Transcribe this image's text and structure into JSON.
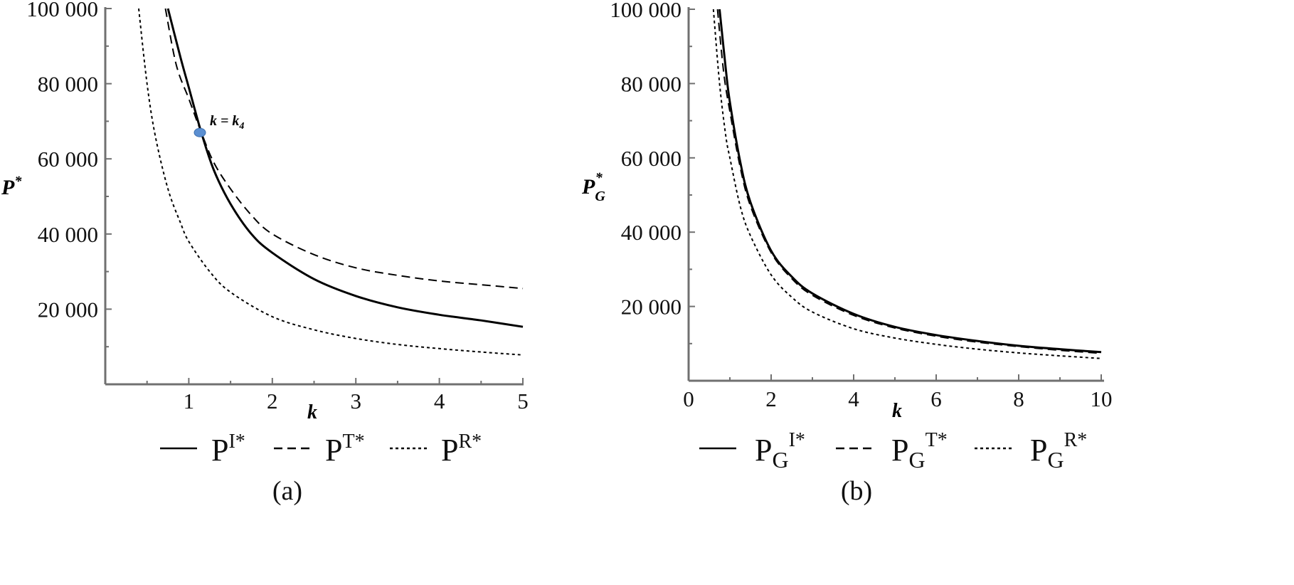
{
  "chart_data": [
    {
      "type": "line",
      "panel": "(a)",
      "xlabel": "k",
      "ylabel": "P",
      "ylabel_sup": "*",
      "xlim": [
        0,
        5
      ],
      "ylim": [
        0,
        100000
      ],
      "xticks": [
        "1",
        "2",
        "3",
        "4",
        "5"
      ],
      "yticks": [
        "20 000",
        "40 000",
        "60 000",
        "80 000",
        "100 000"
      ],
      "series": [
        {
          "name": "P",
          "sup": "I*",
          "dash": "solid",
          "x": [
            0.75,
            0.9,
            1.0,
            1.15,
            1.3,
            1.5,
            1.75,
            2.0,
            2.5,
            3.0,
            3.5,
            4.0,
            4.5,
            5.0
          ],
          "y": [
            100000,
            87000,
            79000,
            67000,
            57000,
            48000,
            40000,
            35000,
            28000,
            23500,
            20500,
            18500,
            17000,
            15300
          ]
        },
        {
          "name": "P",
          "sup": "T*",
          "dash": "dashed",
          "x": [
            0.72,
            0.85,
            1.0,
            1.15,
            1.3,
            1.5,
            1.75,
            2.0,
            2.5,
            3.0,
            3.5,
            4.0,
            4.5,
            5.0
          ],
          "y": [
            100000,
            85000,
            76000,
            67000,
            59000,
            52000,
            45000,
            40000,
            34500,
            31000,
            29000,
            27500,
            26500,
            25500
          ]
        },
        {
          "name": "P",
          "sup": "R*",
          "dash": "dotted",
          "x": [
            0.4,
            0.5,
            0.6,
            0.75,
            0.9,
            1.0,
            1.25,
            1.5,
            2.0,
            2.5,
            3.0,
            3.5,
            4.0,
            4.5,
            5.0
          ],
          "y": [
            100000,
            80000,
            66000,
            52000,
            43000,
            38000,
            30000,
            24500,
            18000,
            14500,
            12200,
            10600,
            9500,
            8600,
            7800
          ]
        }
      ],
      "annotations": [
        {
          "text": "k = k",
          "sub": "4",
          "x": 1.15,
          "y": 67000
        }
      ],
      "grid": false,
      "legend": "bottom"
    },
    {
      "type": "line",
      "panel": "(b)",
      "xlabel": "k",
      "ylabel": "P",
      "ylabel_sub": "G",
      "ylabel_sup": "*",
      "xlim": [
        0,
        10
      ],
      "ylim": [
        0,
        100000
      ],
      "xticks": [
        "0",
        "2",
        "4",
        "6",
        "8",
        "10"
      ],
      "yticks": [
        "20 000",
        "40 000",
        "60 000",
        "80 000",
        "100 000"
      ],
      "series": [
        {
          "name": "P",
          "sub": "G",
          "sup": "I*",
          "dash": "solid",
          "x": [
            0.75,
            0.9,
            1.0,
            1.25,
            1.5,
            2.0,
            2.5,
            3.0,
            4.0,
            5.0,
            6.0,
            7.0,
            8.0,
            9.0,
            10.0
          ],
          "y": [
            100000,
            84000,
            75000,
            59000,
            48000,
            35000,
            28000,
            23500,
            18000,
            14500,
            12300,
            10700,
            9400,
            8500,
            7700
          ]
        },
        {
          "name": "P",
          "sub": "G",
          "sup": "T*",
          "dash": "dashed",
          "x": [
            0.7,
            0.85,
            1.0,
            1.25,
            1.5,
            2.0,
            2.5,
            3.0,
            4.0,
            5.0,
            6.0,
            7.0,
            8.0,
            9.0,
            10.0
          ],
          "y": [
            100000,
            83000,
            72500,
            57500,
            47000,
            34500,
            27500,
            23000,
            17600,
            14200,
            12000,
            10400,
            9200,
            8200,
            7400
          ]
        },
        {
          "name": "P",
          "sub": "G",
          "sup": "R*",
          "dash": "dotted",
          "x": [
            0.6,
            0.75,
            0.9,
            1.0,
            1.25,
            1.5,
            2.0,
            2.5,
            3.0,
            4.0,
            5.0,
            6.0,
            7.0,
            8.0,
            9.0,
            10.0
          ],
          "y": [
            100000,
            80000,
            66000,
            60000,
            47000,
            39000,
            28500,
            22500,
            18500,
            14000,
            11500,
            9800,
            8500,
            7500,
            6700,
            6000
          ]
        }
      ],
      "grid": false,
      "legend": "bottom"
    }
  ]
}
